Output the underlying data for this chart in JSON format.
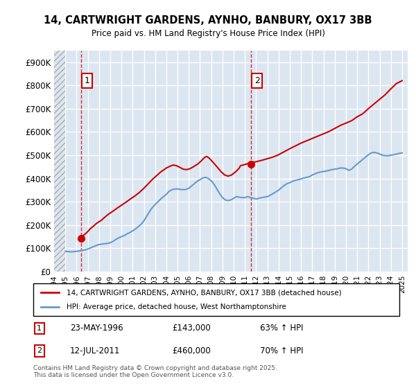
{
  "title": "14, CARTWRIGHT GARDENS, AYNHO, BANBURY, OX17 3BB",
  "subtitle": "Price paid vs. HM Land Registry's House Price Index (HPI)",
  "ylabel": "",
  "xlabel": "",
  "ylim": [
    0,
    950000
  ],
  "yticks": [
    0,
    100000,
    200000,
    300000,
    400000,
    500000,
    600000,
    700000,
    800000,
    900000
  ],
  "ytick_labels": [
    "£0",
    "£100K",
    "£200K",
    "£300K",
    "£400K",
    "£500K",
    "£600K",
    "£700K",
    "£800K",
    "£900K"
  ],
  "background_color": "#dce6f1",
  "plot_bg_color": "#dce6f1",
  "hatch_color": "#c0c0c0",
  "red_color": "#cc0000",
  "blue_color": "#6699cc",
  "grid_color": "#ffffff",
  "annotation1": {
    "label": "1",
    "date_str": "23-MAY-1996",
    "price": 143000,
    "pct": "63% ↑ HPI"
  },
  "annotation2": {
    "label": "2",
    "date_str": "12-JUL-2011",
    "price": 460000,
    "pct": "70% ↑ HPI"
  },
  "legend_line1": "14, CARTWRIGHT GARDENS, AYNHO, BANBURY, OX17 3BB (detached house)",
  "legend_line2": "HPI: Average price, detached house, West Northamptonshire",
  "footer": "Contains HM Land Registry data © Crown copyright and database right 2025.\nThis data is licensed under the Open Government Licence v3.0.",
  "hpi_data": {
    "years": [
      1995.0,
      1995.25,
      1995.5,
      1995.75,
      1996.0,
      1996.25,
      1996.5,
      1996.75,
      1997.0,
      1997.25,
      1997.5,
      1997.75,
      1998.0,
      1998.25,
      1998.5,
      1998.75,
      1999.0,
      1999.25,
      1999.5,
      1999.75,
      2000.0,
      2000.25,
      2000.5,
      2000.75,
      2001.0,
      2001.25,
      2001.5,
      2001.75,
      2002.0,
      2002.25,
      2002.5,
      2002.75,
      2003.0,
      2003.25,
      2003.5,
      2003.75,
      2004.0,
      2004.25,
      2004.5,
      2004.75,
      2005.0,
      2005.25,
      2005.5,
      2005.75,
      2006.0,
      2006.25,
      2006.5,
      2006.75,
      2007.0,
      2007.25,
      2007.5,
      2007.75,
      2008.0,
      2008.25,
      2008.5,
      2008.75,
      2009.0,
      2009.25,
      2009.5,
      2009.75,
      2010.0,
      2010.25,
      2010.5,
      2010.75,
      2011.0,
      2011.25,
      2011.5,
      2011.75,
      2012.0,
      2012.25,
      2012.5,
      2012.75,
      2013.0,
      2013.25,
      2013.5,
      2013.75,
      2014.0,
      2014.25,
      2014.5,
      2014.75,
      2015.0,
      2015.25,
      2015.5,
      2015.75,
      2016.0,
      2016.25,
      2016.5,
      2016.75,
      2017.0,
      2017.25,
      2017.5,
      2017.75,
      2018.0,
      2018.25,
      2018.5,
      2018.75,
      2019.0,
      2019.25,
      2019.5,
      2019.75,
      2020.0,
      2020.25,
      2020.5,
      2020.75,
      2021.0,
      2021.25,
      2021.5,
      2021.75,
      2022.0,
      2022.25,
      2022.5,
      2022.75,
      2023.0,
      2023.25,
      2023.5,
      2023.75,
      2024.0,
      2024.25,
      2024.5,
      2024.75,
      2025.0
    ],
    "values": [
      87000,
      86000,
      85000,
      86000,
      87000,
      89000,
      91000,
      93000,
      97000,
      102000,
      107000,
      112000,
      116000,
      118000,
      120000,
      121000,
      124000,
      130000,
      138000,
      145000,
      150000,
      155000,
      162000,
      168000,
      175000,
      183000,
      193000,
      203000,
      218000,
      238000,
      258000,
      275000,
      288000,
      300000,
      312000,
      322000,
      332000,
      345000,
      352000,
      355000,
      355000,
      353000,
      352000,
      353000,
      358000,
      368000,
      378000,
      388000,
      395000,
      402000,
      405000,
      400000,
      390000,
      375000,
      355000,
      335000,
      318000,
      308000,
      305000,
      308000,
      315000,
      322000,
      320000,
      318000,
      318000,
      322000,
      318000,
      315000,
      312000,
      315000,
      318000,
      320000,
      322000,
      328000,
      335000,
      342000,
      350000,
      360000,
      370000,
      378000,
      382000,
      388000,
      392000,
      395000,
      398000,
      402000,
      405000,
      408000,
      415000,
      420000,
      425000,
      428000,
      430000,
      432000,
      435000,
      438000,
      440000,
      442000,
      445000,
      445000,
      442000,
      435000,
      440000,
      452000,
      462000,
      472000,
      482000,
      492000,
      502000,
      510000,
      512000,
      510000,
      505000,
      500000,
      498000,
      498000,
      500000,
      502000,
      505000,
      508000,
      510000
    ]
  },
  "price_data": {
    "years": [
      1996.4,
      1996.5,
      1996.6,
      1996.8,
      1997.0,
      1997.2,
      1997.5,
      1997.8,
      1998.2,
      1998.5,
      1998.8,
      1999.2,
      1999.6,
      2000.0,
      2000.4,
      2000.8,
      2001.2,
      2001.6,
      2002.0,
      2002.4,
      2002.8,
      2003.2,
      2003.5,
      2003.8,
      2004.0,
      2004.3,
      2004.6,
      2004.9,
      2005.2,
      2005.5,
      2005.8,
      2006.1,
      2006.4,
      2006.8,
      2007.1,
      2007.4,
      2007.6,
      2007.8,
      2008.0,
      2008.3,
      2008.6,
      2008.9,
      2009.2,
      2009.5,
      2009.8,
      2010.0,
      2010.25,
      2010.5,
      2010.6,
      2011.0,
      2011.5,
      2012.0,
      2012.5,
      2013.0,
      2013.5,
      2014.0,
      2014.5,
      2015.0,
      2015.5,
      2016.0,
      2016.5,
      2017.0,
      2017.5,
      2018.0,
      2018.5,
      2019.0,
      2019.5,
      2020.0,
      2020.5,
      2021.0,
      2021.5,
      2022.0,
      2022.5,
      2023.0,
      2023.5,
      2024.0,
      2024.5,
      2025.0
    ],
    "values": [
      143000,
      148000,
      155000,
      163000,
      172000,
      183000,
      195000,
      208000,
      220000,
      233000,
      245000,
      258000,
      272000,
      285000,
      298000,
      312000,
      325000,
      340000,
      358000,
      378000,
      398000,
      415000,
      428000,
      438000,
      445000,
      452000,
      458000,
      455000,
      448000,
      440000,
      438000,
      442000,
      450000,
      462000,
      475000,
      490000,
      495000,
      488000,
      478000,
      462000,
      445000,
      428000,
      415000,
      410000,
      415000,
      422000,
      432000,
      445000,
      455000,
      460000,
      468000,
      472000,
      478000,
      485000,
      492000,
      502000,
      515000,
      528000,
      540000,
      552000,
      562000,
      572000,
      582000,
      592000,
      602000,
      615000,
      628000,
      638000,
      648000,
      665000,
      678000,
      700000,
      720000,
      740000,
      760000,
      785000,
      808000,
      820000
    ]
  },
  "purchase1_x": 1996.388,
  "purchase1_y": 143000,
  "purchase2_x": 2011.53,
  "purchase2_y": 460000,
  "xmin": 1994.0,
  "xmax": 2025.5,
  "hatch_xmax": 1995.0
}
